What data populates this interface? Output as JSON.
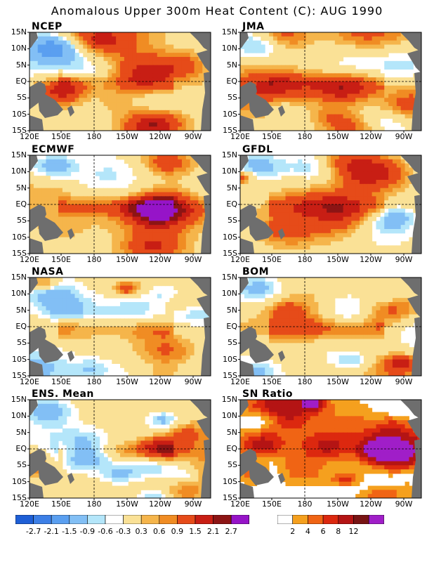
{
  "title": "Anomalous Upper 300m Heat Content (C): AUG 1990",
  "lat_labels": [
    "15N",
    "10N",
    "5N",
    "EQ",
    "5S",
    "10S",
    "15S"
  ],
  "lon_labels": [
    "120E",
    "150E",
    "180",
    "150W",
    "120W",
    "90W"
  ],
  "colors": {
    "land": "#6e6e6e",
    "anom": [
      "#1e5fd6",
      "#3c7fe6",
      "#5a9ff0",
      "#82bff5",
      "#b4e6fa",
      "#ffffff",
      "#fae196",
      "#f5b54b",
      "#f08c23",
      "#e64b19",
      "#c81e14",
      "#8c1414",
      "#9614c8"
    ],
    "sn": [
      "#ffffff",
      "#f5a01e",
      "#f06414",
      "#dc280f",
      "#b41414",
      "#781414",
      "#a01ec8"
    ]
  },
  "chart_data": [
    {
      "type": "heatmap",
      "name": "NCEP",
      "variable": "Anomalous Upper 300m Heat Content (C)"
    },
    {
      "type": "heatmap",
      "name": "JMA",
      "variable": "Anomalous Upper 300m Heat Content (C)"
    },
    {
      "type": "heatmap",
      "name": "ECMWF",
      "variable": "Anomalous Upper 300m Heat Content (C)"
    },
    {
      "type": "heatmap",
      "name": "GFDL",
      "variable": "Anomalous Upper 300m Heat Content (C)"
    },
    {
      "type": "heatmap",
      "name": "NASA",
      "variable": "Anomalous Upper 300m Heat Content (C)"
    },
    {
      "type": "heatmap",
      "name": "BOM",
      "variable": "Anomalous Upper 300m Heat Content (C)"
    },
    {
      "type": "heatmap",
      "name": "ENS. Mean",
      "variable": "Anomalous Upper 300m Heat Content (C)"
    },
    {
      "type": "heatmap",
      "name": "SN Ratio",
      "variable": "Signal to noise ratio"
    }
  ],
  "colorbars": {
    "anomaly": {
      "labels": [
        "-2.7",
        "-2.1",
        "-1.5",
        "-0.9",
        "-0.6",
        "-0.3",
        "0.3",
        "0.6",
        "0.9",
        "1.5",
        "2.1",
        "2.7"
      ]
    },
    "sn_ratio": {
      "labels": [
        "2",
        "4",
        "6",
        "8",
        "12"
      ]
    }
  }
}
